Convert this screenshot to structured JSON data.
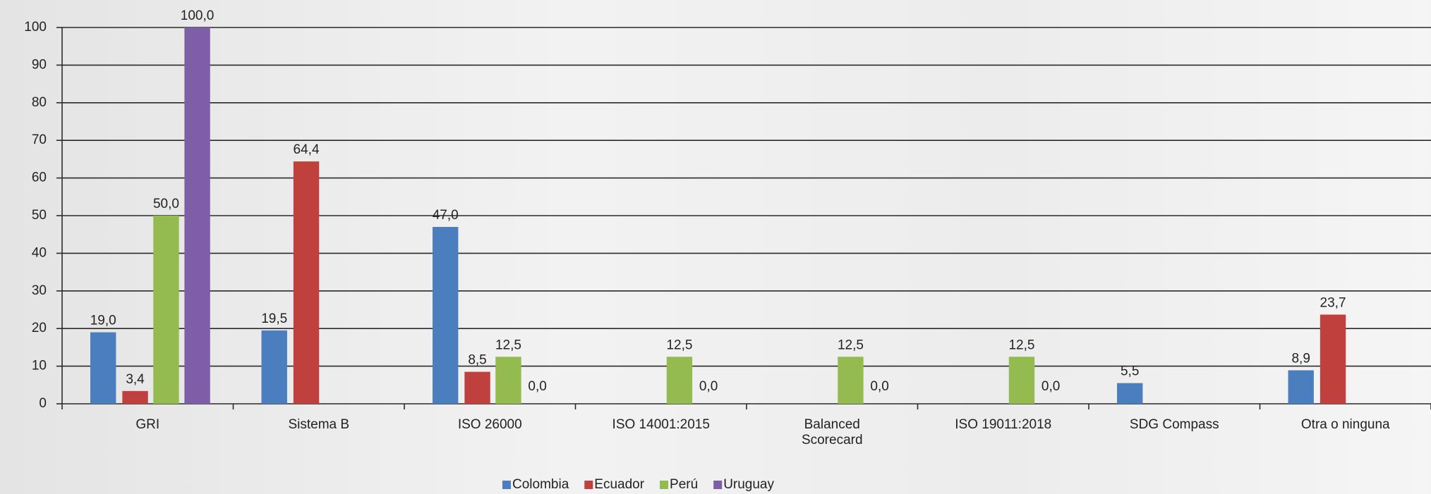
{
  "chart_data": {
    "type": "bar",
    "categories": [
      "GRI",
      "Sistema B",
      "ISO 26000",
      "ISO 14001:2015",
      "Balanced\nScorecard",
      "ISO 19011:2018",
      "SDG Compass",
      "Otra o ninguna"
    ],
    "series": [
      {
        "name": "Colombia",
        "color": "#4a7ebf",
        "values": [
          19.0,
          19.5,
          47.0,
          null,
          null,
          null,
          5.5,
          8.9
        ],
        "value_labels": [
          "19,0",
          "19,5",
          "47,0",
          null,
          null,
          null,
          "5,5",
          "8,9"
        ]
      },
      {
        "name": "Ecuador",
        "color": "#c0403d",
        "values": [
          3.4,
          64.4,
          8.5,
          null,
          null,
          null,
          null,
          23.7
        ],
        "value_labels": [
          "3,4",
          "64,4",
          "8,5",
          null,
          null,
          null,
          null,
          "23,7"
        ]
      },
      {
        "name": "Perú",
        "color": "#94bb50",
        "values": [
          50.0,
          null,
          12.5,
          12.5,
          12.5,
          12.5,
          null,
          null
        ],
        "value_labels": [
          "50,0",
          null,
          "12,5",
          "12,5",
          "12,5",
          "12,5",
          null,
          null
        ]
      },
      {
        "name": "Uruguay",
        "color": "#7e5ea6",
        "values": [
          100.0,
          null,
          0.0,
          0.0,
          0.0,
          0.0,
          null,
          null
        ],
        "value_labels": [
          "100,0",
          null,
          "0,0",
          "0,0",
          "0,0",
          "0,0",
          null,
          null
        ]
      }
    ],
    "ylim": [
      0,
      100
    ],
    "yticks": [
      0,
      10,
      20,
      30,
      40,
      50,
      60,
      70,
      80,
      90,
      100
    ],
    "grid": true,
    "legend": "bottom"
  }
}
